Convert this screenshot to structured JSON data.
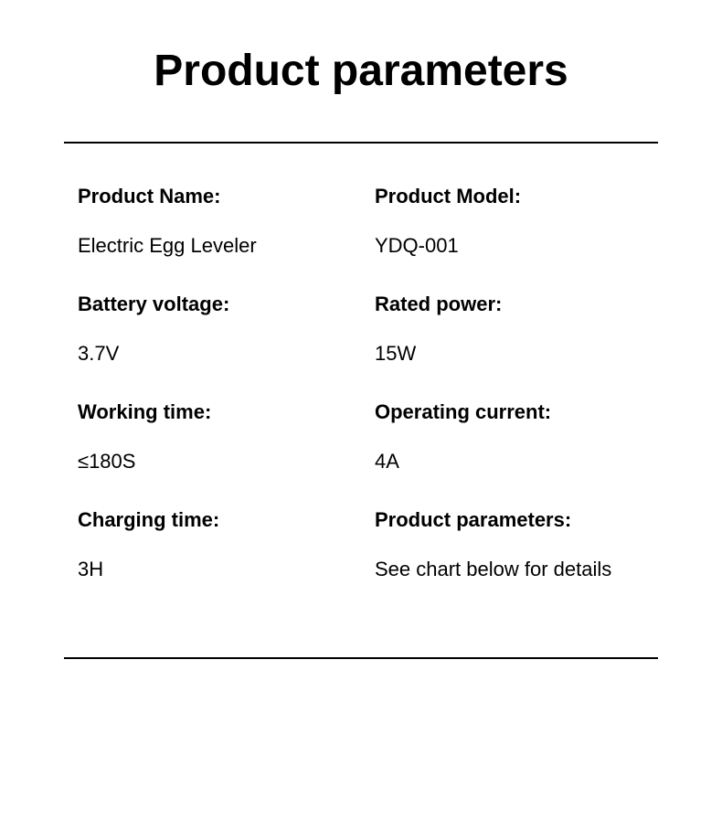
{
  "title": "Product parameters",
  "layout": {
    "columns": 2,
    "background_color": "#ffffff",
    "text_color": "#000000",
    "title_fontsize": 48,
    "label_fontsize": 22,
    "value_fontsize": 22,
    "divider_color": "#000000",
    "divider_width": 2
  },
  "left_column": [
    {
      "label": "Product Name:",
      "value": "Electric Egg Leveler"
    },
    {
      "label": "Battery voltage:",
      "value": "3.7V"
    },
    {
      "label": "Working time:",
      "value": "≤180S"
    },
    {
      "label": "Charging time:",
      "value": "3H"
    }
  ],
  "right_column": [
    {
      "label": "Product Model:",
      "value": "YDQ-001"
    },
    {
      "label": "Rated power:",
      "value": "15W"
    },
    {
      "label": "Operating current:",
      "value": "4A"
    },
    {
      "label": "Product parameters:",
      "value": "See chart below for details"
    }
  ]
}
